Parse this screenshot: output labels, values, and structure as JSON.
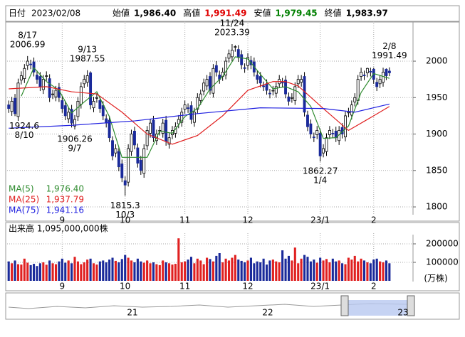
{
  "header": {
    "date_label": "日付",
    "date": "2023/02/08",
    "fields": [
      {
        "label": "始値",
        "text": "1,986.40",
        "color": "#000000"
      },
      {
        "label": "高値",
        "text": "1,991.49",
        "color": "#e00000"
      },
      {
        "label": "安値",
        "text": "1,979.45",
        "color": "#008000"
      },
      {
        "label": "終値",
        "text": "1,983.97",
        "color": "#000000"
      }
    ]
  },
  "chart_data": [
    {
      "type": "candlestick",
      "up_color": "#ffffff",
      "down_color": "#1a2a9a",
      "xlim": [
        -0.5,
        128.5
      ],
      "ylim": [
        1789.3,
        2052.7
      ],
      "yticks": [
        1800,
        1850,
        1900,
        1950,
        2000
      ],
      "xticks": [
        {
          "value": 17,
          "label": "9"
        },
        {
          "value": 37,
          "label": "10"
        },
        {
          "value": 56,
          "label": "11"
        },
        {
          "value": 76,
          "label": "12"
        },
        {
          "value": 99,
          "label": "23/1"
        },
        {
          "value": 116,
          "label": "2"
        }
      ],
      "grid": true,
      "open": [
        1940,
        1931,
        1949,
        1924,
        1974,
        1976,
        1994,
        1996,
        1999,
        1981,
        1979,
        1961,
        1979,
        1976,
        1954,
        1951,
        1964,
        1946,
        1939,
        1921,
        1934,
        1911,
        1924,
        1941,
        1969,
        1971,
        1984,
        1936,
        1949,
        1946,
        1939,
        1921,
        1919,
        1891,
        1874,
        1876,
        1859,
        1836,
        1834,
        1876,
        1904,
        1881,
        1864,
        1846,
        1884,
        1901,
        1919,
        1891,
        1904,
        1901,
        1919,
        1886,
        1899,
        1901,
        1914,
        1916,
        1934,
        1936,
        1939,
        1916,
        1934,
        1946,
        1959,
        1966,
        1979,
        1956,
        1994,
        1981,
        1979,
        1981,
        2004,
        2006,
        2019,
        2016,
        2009,
        1991,
        1994,
        2001,
        1999,
        1981,
        1979,
        1966,
        1969,
        1956,
        1959,
        1956,
        1969,
        1971,
        1974,
        1951,
        1949,
        1946,
        1969,
        1971,
        1979,
        1926,
        1914,
        1896,
        1899,
        1901,
        1874,
        1876,
        1899,
        1901,
        1904,
        1891,
        1909,
        1896,
        1929,
        1926,
        1944,
        1946,
        1979,
        1981,
        1984,
        1986,
        1989,
        1971,
        1969,
        1971,
        1989,
        1986.4
      ],
      "high": [
        1946,
        1951,
        1955,
        1976,
        1986,
        1996,
        2006.99,
        2002,
        2005,
        1987,
        1985,
        1981,
        1986,
        1982,
        1961,
        1966,
        1970,
        1952,
        1945,
        1936,
        1940,
        1926,
        1951,
        1971,
        1981,
        1987.55,
        1986,
        1951,
        1956,
        1952,
        1945,
        1927,
        1925,
        1897,
        1886,
        1882,
        1865,
        1842,
        1886,
        1906,
        1910,
        1887,
        1870,
        1886,
        1911,
        1921,
        1925,
        1906,
        1911,
        1921,
        1925,
        1901,
        1911,
        1916,
        1926,
        1936,
        1946,
        1942,
        1945,
        1936,
        1956,
        1961,
        1976,
        1981,
        1985,
        1996,
        2000,
        1987,
        1991,
        2006,
        2016,
        2023.39,
        2022,
        2022,
        2015,
        1997,
        2011,
        2007,
        2005,
        1987,
        1985,
        1972,
        1975,
        1962,
        1966,
        1971,
        1981,
        1977,
        1980,
        1957,
        1956,
        1971,
        1981,
        1981,
        1985,
        1932,
        1920,
        1902,
        1911,
        1907,
        1886,
        1901,
        1911,
        1907,
        1910,
        1911,
        1915,
        1931,
        1936,
        1946,
        1956,
        1981,
        1991,
        1987,
        1991,
        1991,
        1991,
        1977,
        1981,
        1991,
        1990,
        1991.49
      ],
      "low": [
        1929,
        1925,
        1924.6,
        1918,
        1968,
        1970,
        1988,
        1989,
        1979,
        1969,
        1959,
        1955,
        1973,
        1944,
        1948,
        1945,
        1944,
        1929,
        1919,
        1915,
        1909,
        1906.26,
        1918,
        1935,
        1963,
        1965,
        1934,
        1930,
        1943,
        1929,
        1919,
        1909,
        1889,
        1864,
        1868,
        1849,
        1834,
        1815.3,
        1828,
        1870,
        1879,
        1854,
        1844,
        1840,
        1878,
        1895,
        1889,
        1885,
        1898,
        1895,
        1884,
        1880,
        1893,
        1895,
        1908,
        1910,
        1928,
        1929,
        1914,
        1910,
        1928,
        1940,
        1953,
        1960,
        1954,
        1950,
        1979,
        1969,
        1973,
        1975,
        1998,
        2000,
        2013,
        1999,
        1989,
        1984,
        1988,
        1989,
        1979,
        1969,
        1964,
        1959,
        1954,
        1949,
        1953,
        1950,
        1963,
        1964,
        1949,
        1939,
        1943,
        1940,
        1963,
        1965,
        1924,
        1904,
        1894,
        1889,
        1893,
        1862.27,
        1868,
        1870,
        1893,
        1895,
        1889,
        1885,
        1894,
        1890,
        1923,
        1920,
        1938,
        1940,
        1973,
        1974,
        1978,
        1979,
        1969,
        1959,
        1963,
        1965,
        1974,
        1979.45
      ],
      "close": [
        1935,
        1945,
        1928,
        1970,
        1980,
        1990,
        2000,
        1995,
        1985,
        1975,
        1965,
        1975,
        1980,
        1950,
        1955,
        1960,
        1950,
        1935,
        1925,
        1930,
        1915,
        1920,
        1945,
        1965,
        1975,
        1980,
        1940,
        1945,
        1950,
        1935,
        1925,
        1915,
        1895,
        1870,
        1880,
        1855,
        1840,
        1830,
        1880,
        1900,
        1885,
        1860,
        1850,
        1880,
        1905,
        1915,
        1895,
        1900,
        1905,
        1915,
        1890,
        1895,
        1905,
        1910,
        1920,
        1930,
        1940,
        1935,
        1920,
        1930,
        1950,
        1955,
        1970,
        1975,
        1960,
        1990,
        1985,
        1975,
        1985,
        2000,
        2010,
        2015,
        2020,
        2005,
        1995,
        1990,
        2005,
        1995,
        1985,
        1975,
        1970,
        1965,
        1960,
        1955,
        1960,
        1965,
        1975,
        1970,
        1955,
        1945,
        1950,
        1965,
        1975,
        1975,
        1930,
        1910,
        1900,
        1895,
        1905,
        1870,
        1880,
        1895,
        1905,
        1900,
        1895,
        1905,
        1900,
        1925,
        1930,
        1940,
        1950,
        1975,
        1985,
        1980,
        1990,
        1985,
        1975,
        1965,
        1975,
        1985,
        1980,
        1983.97
      ],
      "series": [
        {
          "name": "MA(5)",
          "color": "#2e8b2e",
          "value_label": "1,976.40",
          "x": [
            4,
            8,
            12,
            16,
            20,
            24,
            28,
            32,
            36,
            40,
            44,
            48,
            52,
            56,
            60,
            64,
            68,
            72,
            76,
            80,
            84,
            88,
            92,
            96,
            100,
            104,
            108,
            112,
            116,
            121
          ],
          "values": [
            1952,
            1991,
            1972,
            1960,
            1929,
            1944,
            1958,
            1924,
            1868,
            1868,
            1868,
            1904,
            1901,
            1924,
            1935,
            1962,
            1979,
            2006,
            2003,
            1982,
            1962,
            1965,
            1958,
            1938,
            1894,
            1895,
            1911,
            1957,
            1983,
            1976.4
          ]
        },
        {
          "name": "MA(25)",
          "color": "#e02020",
          "value_label": "1,937.79",
          "x": [
            0,
            12,
            20,
            28,
            36,
            44,
            52,
            60,
            68,
            76,
            84,
            88,
            92,
            100,
            108,
            116,
            121
          ],
          "values": [
            1962,
            1965,
            1958,
            1955,
            1930,
            1900,
            1886,
            1898,
            1925,
            1960,
            1972,
            1972,
            1966,
            1935,
            1905,
            1925,
            1937.79
          ]
        },
        {
          "name": "MA(75)",
          "color": "#2020e0",
          "value_label": "1,941.16",
          "x": [
            0,
            20,
            40,
            60,
            80,
            100,
            110,
            121
          ],
          "values": [
            1908,
            1912,
            1918,
            1928,
            1936,
            1935,
            1930,
            1941.16
          ]
        }
      ],
      "annotations": [
        {
          "x": 6,
          "date": "8/17",
          "value": 2006.99,
          "placement": "above"
        },
        {
          "x": 2,
          "date": "8/10",
          "value": 1924.6,
          "placement": "below"
        },
        {
          "x": 25,
          "date": "9/13",
          "value": 1987.55,
          "placement": "above"
        },
        {
          "x": 21,
          "date": "9/7",
          "value": 1906.26,
          "placement": "below"
        },
        {
          "x": 37,
          "date": "10/3",
          "value": 1815.3,
          "placement": "below"
        },
        {
          "x": 71,
          "date": "11/24",
          "value": 2023.39,
          "placement": "above"
        },
        {
          "x": 99,
          "date": "1/4",
          "value": 1862.27,
          "placement": "below"
        },
        {
          "x": 121,
          "date": "2/8",
          "value": 1991.49,
          "placement": "above"
        }
      ]
    },
    {
      "type": "bar",
      "title": "出来高  1,095,000,000株",
      "unit": "(万株)",
      "up_color": "#e02020",
      "down_color": "#1a2a9a",
      "xlim": [
        -0.5,
        128.5
      ],
      "ylim": [
        0,
        250000
      ],
      "yticks": [
        100000,
        200000
      ],
      "values": [
        105000,
        95000,
        110000,
        90000,
        88000,
        120000,
        98000,
        85000,
        92000,
        80000,
        95000,
        100000,
        87000,
        110000,
        95000,
        90000,
        105000,
        120000,
        98000,
        110000,
        95000,
        130000,
        105000,
        90000,
        100000,
        115000,
        120000,
        95000,
        88000,
        105000,
        110000,
        100000,
        115000,
        125000,
        108000,
        100000,
        118000,
        140000,
        125000,
        110000,
        100000,
        120000,
        105000,
        98000,
        110000,
        95000,
        100000,
        90000,
        85000,
        110000,
        100000,
        95000,
        88000,
        92000,
        230000,
        100000,
        105000,
        115000,
        130000,
        95000,
        120000,
        110000,
        90000,
        125000,
        118000,
        105000,
        135000,
        150000,
        100000,
        120000,
        110000,
        125000,
        140000,
        115000,
        108000,
        100000,
        110000,
        125000,
        95000,
        105000,
        100000,
        120000,
        88000,
        110000,
        115000,
        105000,
        100000,
        165000,
        120000,
        135000,
        110000,
        180000,
        95000,
        120000,
        140000,
        130000,
        105000,
        115000,
        98000,
        125000,
        110000,
        118000,
        100000,
        120000,
        105000,
        110000,
        95000,
        90000,
        125000,
        115000,
        135000,
        105000,
        120000,
        110000,
        100000,
        95000,
        115000,
        120000,
        105000,
        100000,
        110000,
        95000
      ]
    }
  ],
  "navigator": {
    "labels": [
      "21",
      "22",
      "23"
    ]
  }
}
